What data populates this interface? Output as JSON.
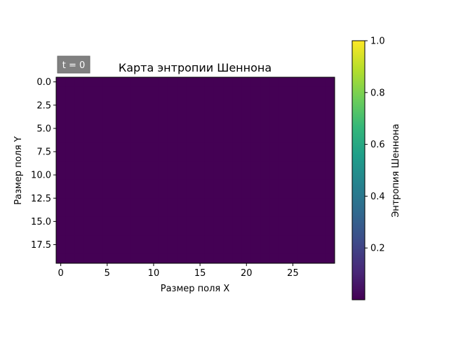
{
  "chart_data": {
    "type": "heatmap",
    "title": "Карта энтропии Шеннона",
    "xlabel": "Размер поля X",
    "ylabel": "Размер поля Y",
    "xticks": [
      "0",
      "5",
      "10",
      "15",
      "20",
      "25"
    ],
    "yticks": [
      "0.0",
      "2.5",
      "5.0",
      "7.5",
      "10.0",
      "12.5",
      "15.0",
      "17.5"
    ],
    "grid_width": 30,
    "grid_height": 20,
    "cell_value": 0,
    "cell_color": "#440154",
    "xlim": [
      -0.5,
      29.5
    ],
    "ylim": [
      19.5,
      -0.5
    ],
    "annotation": "t = 0",
    "annotation_bg": "#808080",
    "grid": false,
    "colorbar": {
      "label": "Энтропия Шеннона",
      "colormap": "viridis",
      "ticks": [
        "0.2",
        "0.4",
        "0.6",
        "0.8",
        "1.0"
      ],
      "range": [
        0.0,
        1.0
      ],
      "stops": [
        "#440154",
        "#482878",
        "#3e4a89",
        "#31688e",
        "#26828e",
        "#1f9e89",
        "#35b779",
        "#6ece58",
        "#b5de2b",
        "#fde725"
      ]
    }
  }
}
